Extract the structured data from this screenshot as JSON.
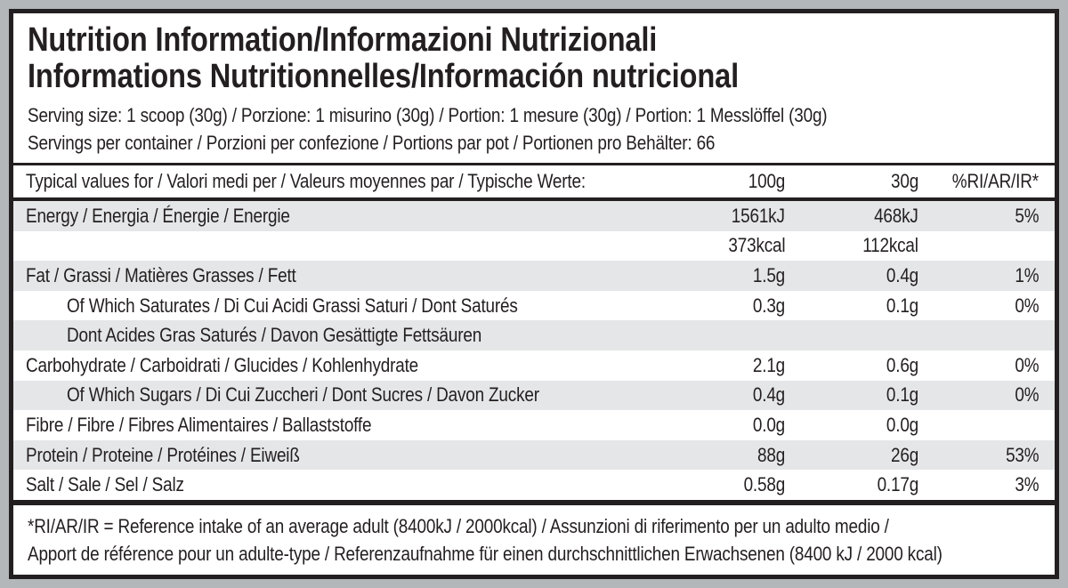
{
  "colors": {
    "page_bg": "#b3b7b9",
    "frame": "#231f20",
    "stripe": "#e5e6e7",
    "text": "#231f20"
  },
  "title": {
    "line1": "Nutrition Information/Informazioni Nutrizionali",
    "line2": "Informations Nutritionnelles/Información nutricional"
  },
  "serving": {
    "size_line": "Serving size: 1 scoop (30g) / Porzione: 1 misurino (30g) / Portion: 1 mesure (30g) / Portion: 1 Messlöffel (30g)",
    "servings_line": "Servings per container / Porzioni per confezione / Portions par pot / Portionen pro Behälter: 66"
  },
  "table": {
    "header": {
      "label": "Typical values for / Valori medi per / Valeurs moyennes par / Typische Werte:",
      "col_100g": "100g",
      "col_30g": "30g",
      "col_ri": "%RI/AR/IR*"
    },
    "rows": [
      {
        "label": "Energy / Energia / Énergie / Energie",
        "per100": "1561kJ",
        "per30": "468kJ",
        "ri": "5%"
      },
      {
        "label": "",
        "per100": "373kcal",
        "per30": "112kcal",
        "ri": ""
      },
      {
        "label": "Fat / Grassi / Matières Grasses / Fett",
        "per100": "1.5g",
        "per30": "0.4g",
        "ri": "1%"
      },
      {
        "label": "Of Which Saturates / Di Cui Acidi Grassi Saturi / Dont Saturés",
        "per100": "0.3g",
        "per30": "0.1g",
        "ri": "0%"
      },
      {
        "label": "Dont Acides Gras Saturés / Davon Gesättigte Fettsäuren",
        "per100": "",
        "per30": "",
        "ri": ""
      },
      {
        "label": "Carbohydrate / Carboidrati / Glucides / Kohlenhydrate",
        "per100": "2.1g",
        "per30": "0.6g",
        "ri": "0%"
      },
      {
        "label": "Of Which Sugars / Di Cui Zuccheri / Dont Sucres / Davon Zucker",
        "per100": "0.4g",
        "per30": "0.1g",
        "ri": "0%"
      },
      {
        "label": "Fibre / Fibre / Fibres Alimentaires / Ballaststoffe",
        "per100": "0.0g",
        "per30": "0.0g",
        "ri": ""
      },
      {
        "label": "Protein / Proteine / Protéines / Eiweiß",
        "per100": "88g",
        "per30": "26g",
        "ri": "53%"
      },
      {
        "label": "Salt / Sale / Sel / Salz",
        "per100": "0.58g",
        "per30": "0.17g",
        "ri": "3%"
      }
    ]
  },
  "footnote": {
    "line1": "*RI/AR/IR = Reference intake of an average adult (8400kJ / 2000kcal) / Assunzioni di riferimento per un adulto medio /",
    "line2": "Apport de référence pour un adulte-type / Referenzaufnahme für einen durchschnittlichen Erwachsenen (8400 kJ / 2000 kcal)"
  }
}
